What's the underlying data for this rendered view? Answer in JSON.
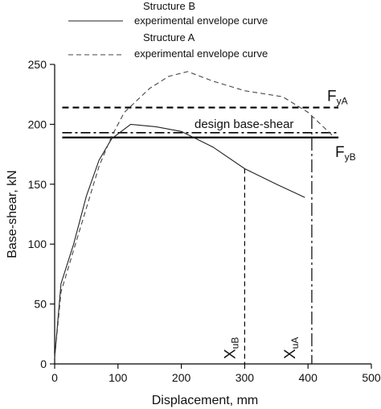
{
  "chart_data": {
    "type": "line",
    "xlabel": "Displacement, mm",
    "ylabel": "Base-shear, kN",
    "xlim": [
      0,
      500
    ],
    "ylim": [
      0,
      250
    ],
    "x_ticks": [
      0,
      100,
      200,
      300,
      400,
      500
    ],
    "y_ticks": [
      0,
      50,
      100,
      150,
      200,
      250
    ],
    "grid": false,
    "legend_placement": "top",
    "series": [
      {
        "name": "Structure B experimental envelope curve",
        "legend_line1": "Structure B",
        "legend_line2": "experimental envelope curve",
        "style": "solid",
        "color": "#222222",
        "points": [
          [
            0,
            5
          ],
          [
            10,
            67
          ],
          [
            30,
            100
          ],
          [
            50,
            140
          ],
          [
            70,
            170
          ],
          [
            90,
            188
          ],
          [
            120,
            200
          ],
          [
            160,
            198
          ],
          [
            200,
            194
          ],
          [
            250,
            181
          ],
          [
            300,
            163
          ],
          [
            350,
            150
          ],
          [
            395,
            139
          ]
        ]
      },
      {
        "name": "Structure A experimental envelope curve",
        "legend_line1": "Structure A",
        "legend_line2": "experimental envelope curve",
        "style": "dashed",
        "color": "#444444",
        "points": [
          [
            0,
            5
          ],
          [
            10,
            60
          ],
          [
            30,
            95
          ],
          [
            50,
            130
          ],
          [
            70,
            165
          ],
          [
            90,
            190
          ],
          [
            110,
            210
          ],
          [
            150,
            230
          ],
          [
            180,
            240
          ],
          [
            210,
            244
          ],
          [
            250,
            236
          ],
          [
            300,
            228
          ],
          [
            360,
            223
          ],
          [
            400,
            210
          ],
          [
            420,
            200
          ],
          [
            440,
            190
          ]
        ]
      }
    ],
    "reference_lines": [
      {
        "id": "FyA",
        "orientation": "horizontal",
        "value": 214,
        "style": "dashed-heavy",
        "label_main": "F",
        "label_sub": "yA"
      },
      {
        "id": "design",
        "orientation": "horizontal",
        "value": 193,
        "style": "dashdot",
        "label": "design base-shear"
      },
      {
        "id": "FyB",
        "orientation": "horizontal",
        "value": 189,
        "style": "solid-heavy",
        "label_main": "F",
        "label_sub": "yB"
      },
      {
        "id": "XuB",
        "orientation": "vertical",
        "value": 300,
        "y_top": 163,
        "style": "dashed",
        "label_main": "X",
        "label_sub": "uB"
      },
      {
        "id": "XuA",
        "orientation": "vertical",
        "value": 406,
        "y_top": 207,
        "style": "longdash",
        "label_main": "X",
        "label_sub": "uA"
      }
    ]
  }
}
